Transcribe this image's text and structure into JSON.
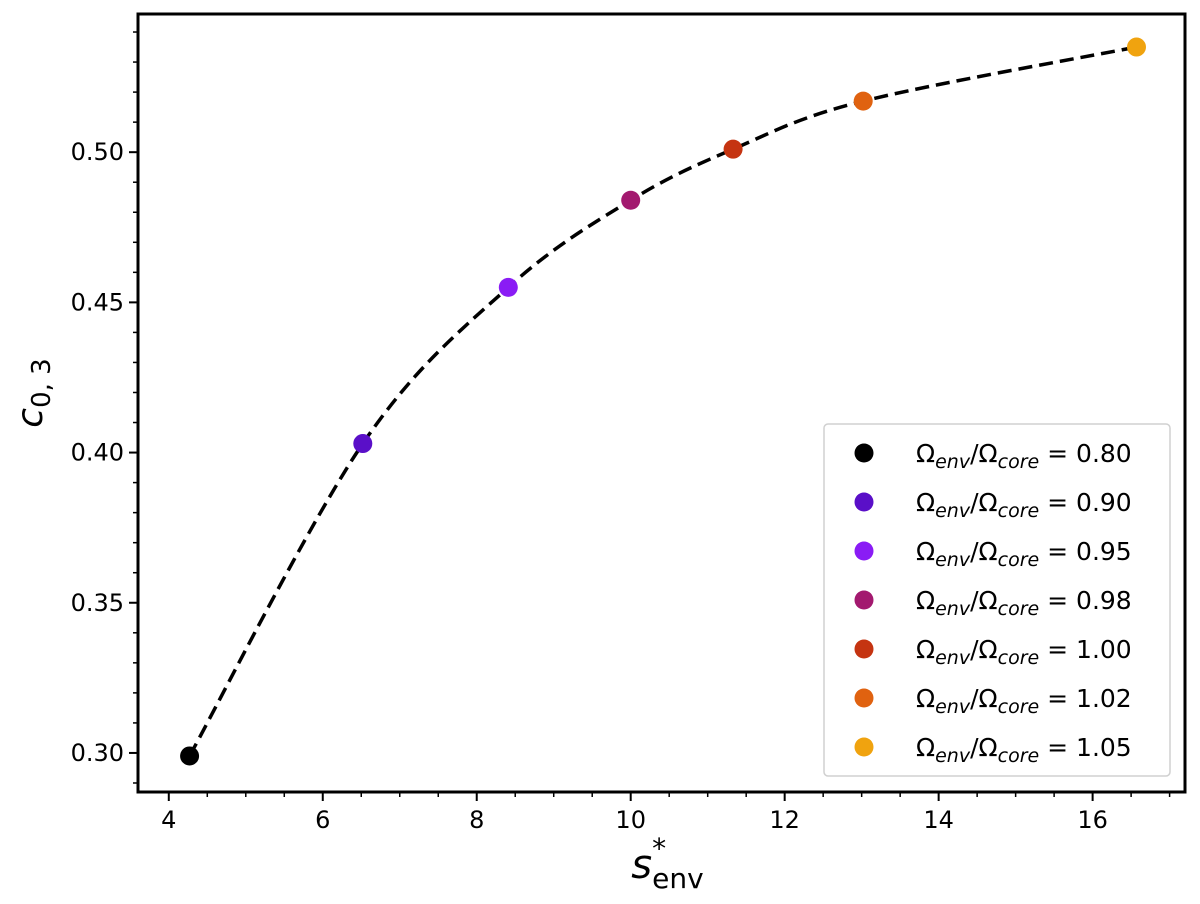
{
  "chart_data": {
    "type": "scatter",
    "title": "",
    "xlabel": {
      "base": "s",
      "sup": "*",
      "sub": "env"
    },
    "ylabel": {
      "base": "c",
      "sub": "0, 3"
    },
    "xlim": [
      3.6,
      17.2
    ],
    "ylim": [
      0.287,
      0.546
    ],
    "xticks": [
      4,
      6,
      8,
      10,
      12,
      14,
      16
    ],
    "xtick_labels": [
      "4",
      "6",
      "8",
      "10",
      "12",
      "14",
      "16"
    ],
    "yticks": [
      0.3,
      0.35,
      0.4,
      0.45,
      0.5
    ],
    "ytick_labels": [
      "0.30",
      "0.35",
      "0.40",
      "0.45",
      "0.50"
    ],
    "grid": false,
    "legend_placement": "lower-right",
    "fit_curve": {
      "style": "dashed",
      "color": "#000000"
    },
    "series": [
      {
        "name": "Ω_env/Ω_core = 0.80",
        "ratio": "0.80",
        "color": "#000000",
        "x": 4.27,
        "y": 0.299
      },
      {
        "name": "Ω_env/Ω_core = 0.90",
        "ratio": "0.90",
        "color": "#5a0fc8",
        "x": 6.52,
        "y": 0.403
      },
      {
        "name": "Ω_env/Ω_core = 0.95",
        "ratio": "0.95",
        "color": "#8a1cf5",
        "x": 8.41,
        "y": 0.455
      },
      {
        "name": "Ω_env/Ω_core = 0.98",
        "ratio": "0.98",
        "color": "#a3196f",
        "x": 10.0,
        "y": 0.484
      },
      {
        "name": "Ω_env/Ω_core = 1.00",
        "ratio": "1.00",
        "color": "#c53411",
        "x": 11.33,
        "y": 0.501
      },
      {
        "name": "Ω_env/Ω_core = 1.02",
        "ratio": "1.02",
        "color": "#e06210",
        "x": 13.02,
        "y": 0.517
      },
      {
        "name": "Ω_env/Ω_core = 1.05",
        "ratio": "1.05",
        "color": "#f0a30f",
        "x": 16.57,
        "y": 0.535
      }
    ]
  }
}
